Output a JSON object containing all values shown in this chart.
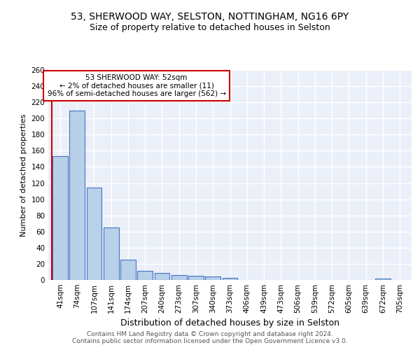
{
  "title": "53, SHERWOOD WAY, SELSTON, NOTTINGHAM, NG16 6PY",
  "subtitle": "Size of property relative to detached houses in Selston",
  "xlabel": "Distribution of detached houses by size in Selston",
  "ylabel": "Number of detached properties",
  "bin_labels": [
    "41sqm",
    "74sqm",
    "107sqm",
    "141sqm",
    "174sqm",
    "207sqm",
    "240sqm",
    "273sqm",
    "307sqm",
    "340sqm",
    "373sqm",
    "406sqm",
    "439sqm",
    "473sqm",
    "506sqm",
    "539sqm",
    "572sqm",
    "605sqm",
    "639sqm",
    "672sqm",
    "705sqm"
  ],
  "bin_values": [
    153,
    210,
    114,
    65,
    25,
    11,
    9,
    6,
    5,
    4,
    3,
    0,
    0,
    0,
    0,
    0,
    0,
    0,
    0,
    2,
    0
  ],
  "bar_color": "#b8d0e8",
  "bar_edge_color": "#4472c4",
  "property_line_label": "53 SHERWOOD WAY: 52sqm",
  "annotation_line1": "← 2% of detached houses are smaller (11)",
  "annotation_line2": "96% of semi-detached houses are larger (562) →",
  "annotation_box_color": "#ffffff",
  "annotation_box_edge_color": "#cc0000",
  "property_line_color": "#cc0000",
  "ylim": [
    0,
    260
  ],
  "yticks": [
    0,
    20,
    40,
    60,
    80,
    100,
    120,
    140,
    160,
    180,
    200,
    220,
    240,
    260
  ],
  "background_color": "#eaeff8",
  "grid_color": "#d0d8e8",
  "footer_text": "Contains HM Land Registry data © Crown copyright and database right 2024.\nContains public sector information licensed under the Open Government Licence v3.0.",
  "title_fontsize": 10,
  "subtitle_fontsize": 9,
  "ylabel_fontsize": 8,
  "xlabel_fontsize": 9,
  "tick_fontsize": 7.5,
  "footer_fontsize": 6.5
}
